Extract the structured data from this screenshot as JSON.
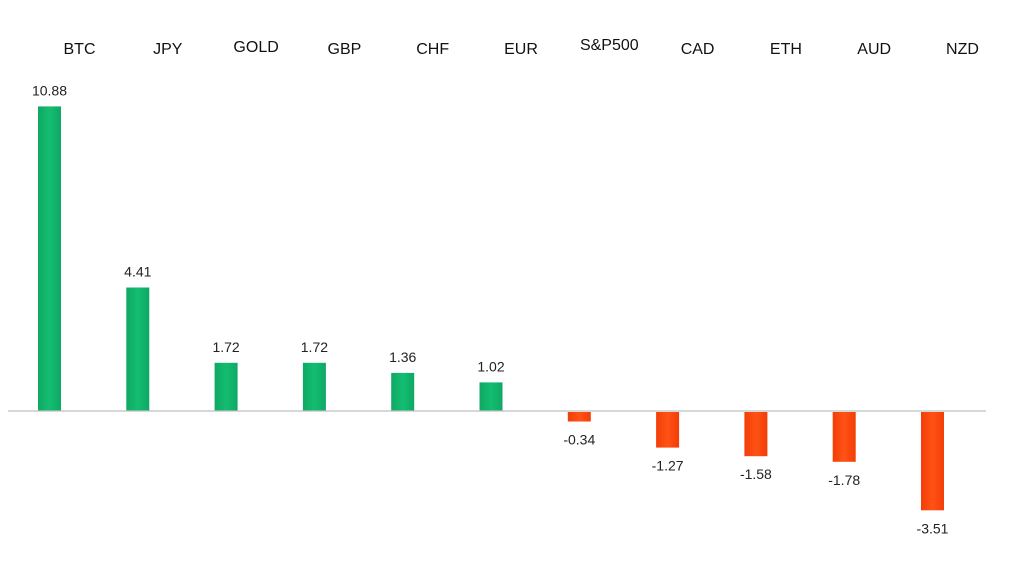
{
  "chart_data": {
    "type": "bar",
    "title": "",
    "xlabel": "",
    "ylabel": "",
    "categories": [
      "BTC",
      "JPY",
      "GOLD",
      "GBP",
      "CHF",
      "EUR",
      "S&P500",
      "CAD",
      "ETH",
      "AUD",
      "NZD"
    ],
    "values": [
      10.88,
      4.41,
      1.72,
      1.72,
      1.36,
      1.02,
      -0.34,
      -1.27,
      -1.58,
      -1.78,
      -3.51
    ],
    "value_labels": [
      "10.88",
      "4.41",
      "1.72",
      "1.72",
      "1.36",
      "1.02",
      "-0.34",
      "-1.27",
      "-1.58",
      "-1.78",
      "-3.51"
    ],
    "ylim": [
      -4.5,
      12.5
    ],
    "grid": false,
    "legend": "none",
    "colors": {
      "positive": "#10B26A",
      "negative": "#FF4A0F",
      "axis": "#BFBFBF"
    }
  }
}
